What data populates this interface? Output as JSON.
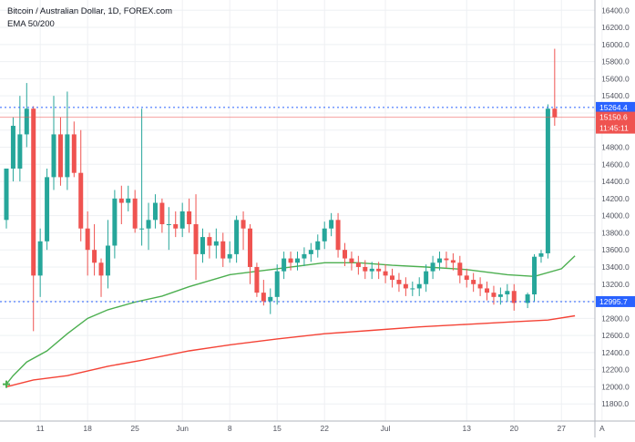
{
  "legend": {
    "title": "Bitcoin / Australian Dollar, 1D, FOREX.com",
    "indicator": "EMA 50/200"
  },
  "colors": {
    "up": "#26a69a",
    "down": "#ef5350",
    "ema50": "#4caf50",
    "ema200": "#f44336",
    "grid": "#eef0f3",
    "level_line": "#2962ff",
    "price_line": "#ef5350",
    "axis_text": "#50535e",
    "level_label_bg": "#2962ff",
    "price_label_bg": "#ef5350"
  },
  "chart_data": {
    "type": "candlestick",
    "title": "Bitcoin / Australian Dollar, 1D, FOREX.com",
    "ylim": [
      11600,
      16520
    ],
    "y_ticks": [
      "11800.0",
      "12000.0",
      "12200.0",
      "12400.0",
      "12600.0",
      "12800.0",
      "13000.0",
      "13200.0",
      "13400.0",
      "13600.0",
      "13800.0",
      "14000.0",
      "14200.0",
      "14400.0",
      "14600.0",
      "14800.0",
      "15000.0",
      "15200.0",
      "15400.0",
      "15600.0",
      "15800.0",
      "16000.0",
      "16200.0",
      "16400.0"
    ],
    "x_ticks": [
      {
        "label": "11",
        "index": 5
      },
      {
        "label": "18",
        "index": 12
      },
      {
        "label": "25",
        "index": 19
      },
      {
        "label": "Jun",
        "index": 26
      },
      {
        "label": "8",
        "index": 33
      },
      {
        "label": "15",
        "index": 40
      },
      {
        "label": "22",
        "index": 47
      },
      {
        "label": "Jul",
        "index": 56
      },
      {
        "label": "13",
        "index": 68
      },
      {
        "label": "20",
        "index": 75
      },
      {
        "label": "27",
        "index": 82
      },
      {
        "label": "A",
        "index": 88
      }
    ],
    "x_count": 89,
    "candles": [
      {
        "o": 13950,
        "h": 14550,
        "l": 13850,
        "c": 14550
      },
      {
        "o": 14550,
        "h": 15150,
        "l": 14400,
        "c": 15050
      },
      {
        "o": 14550,
        "h": 15400,
        "l": 14400,
        "c": 14950
      },
      {
        "o": 14950,
        "h": 15550,
        "l": 14800,
        "c": 15250
      },
      {
        "o": 15250,
        "h": 15280,
        "l": 12650,
        "c": 13300
      },
      {
        "o": 13300,
        "h": 13850,
        "l": 13050,
        "c": 13700
      },
      {
        "o": 13700,
        "h": 14550,
        "l": 13600,
        "c": 14450
      },
      {
        "o": 14450,
        "h": 15400,
        "l": 14300,
        "c": 14950
      },
      {
        "o": 14950,
        "h": 15150,
        "l": 14350,
        "c": 14450
      },
      {
        "o": 14450,
        "h": 15450,
        "l": 14300,
        "c": 14950
      },
      {
        "o": 14950,
        "h": 15100,
        "l": 14450,
        "c": 14500
      },
      {
        "o": 14500,
        "h": 15000,
        "l": 13700,
        "c": 13850
      },
      {
        "o": 13850,
        "h": 14050,
        "l": 13300,
        "c": 13600
      },
      {
        "o": 13600,
        "h": 13900,
        "l": 13300,
        "c": 13450
      },
      {
        "o": 13450,
        "h": 13500,
        "l": 13050,
        "c": 13300
      },
      {
        "o": 13300,
        "h": 13950,
        "l": 13150,
        "c": 13650
      },
      {
        "o": 13650,
        "h": 14300,
        "l": 13500,
        "c": 14200
      },
      {
        "o": 14200,
        "h": 14350,
        "l": 13900,
        "c": 14150
      },
      {
        "o": 14150,
        "h": 14350,
        "l": 14050,
        "c": 14200
      },
      {
        "o": 14200,
        "h": 14300,
        "l": 13800,
        "c": 13850
      },
      {
        "o": 13850,
        "h": 15250,
        "l": 13650,
        "c": 13850
      },
      {
        "o": 13850,
        "h": 14150,
        "l": 13600,
        "c": 13950
      },
      {
        "o": 13950,
        "h": 14250,
        "l": 13850,
        "c": 14150
      },
      {
        "o": 14150,
        "h": 14200,
        "l": 13800,
        "c": 13900
      },
      {
        "o": 13900,
        "h": 14100,
        "l": 13600,
        "c": 13900
      },
      {
        "o": 13900,
        "h": 14050,
        "l": 13750,
        "c": 13850
      },
      {
        "o": 13850,
        "h": 14150,
        "l": 13750,
        "c": 14050
      },
      {
        "o": 14050,
        "h": 14200,
        "l": 13800,
        "c": 13900
      },
      {
        "o": 13900,
        "h": 14250,
        "l": 13250,
        "c": 13550
      },
      {
        "o": 13550,
        "h": 13850,
        "l": 13450,
        "c": 13750
      },
      {
        "o": 13750,
        "h": 13800,
        "l": 13500,
        "c": 13650
      },
      {
        "o": 13650,
        "h": 13850,
        "l": 13500,
        "c": 13700
      },
      {
        "o": 13700,
        "h": 13800,
        "l": 13400,
        "c": 13500
      },
      {
        "o": 13500,
        "h": 13700,
        "l": 13450,
        "c": 13550
      },
      {
        "o": 13550,
        "h": 14000,
        "l": 13450,
        "c": 13950
      },
      {
        "o": 13950,
        "h": 14050,
        "l": 13600,
        "c": 13850
      },
      {
        "o": 13850,
        "h": 13900,
        "l": 13200,
        "c": 13400
      },
      {
        "o": 13400,
        "h": 13450,
        "l": 13050,
        "c": 13100
      },
      {
        "o": 13100,
        "h": 13250,
        "l": 12950,
        "c": 13000
      },
      {
        "o": 13000,
        "h": 13150,
        "l": 12850,
        "c": 13050
      }
    ],
    "ema50": [
      {
        "i": 0,
        "v": 12030
      },
      {
        "i": 1,
        "v": 12130
      },
      {
        "i": 3,
        "v": 12290
      },
      {
        "i": 6,
        "v": 12420
      },
      {
        "i": 9,
        "v": 12620
      },
      {
        "i": 12,
        "v": 12800
      },
      {
        "i": 15,
        "v": 12900
      },
      {
        "i": 19,
        "v": 12990
      },
      {
        "i": 23,
        "v": 13060
      },
      {
        "i": 27,
        "v": 13170
      },
      {
        "i": 33,
        "v": 13310
      },
      {
        "i": 40,
        "v": 13380
      },
      {
        "i": 47,
        "v": 13450
      },
      {
        "i": 52,
        "v": 13450
      },
      {
        "i": 57,
        "v": 13420
      },
      {
        "i": 62,
        "v": 13400
      },
      {
        "i": 68,
        "v": 13370
      },
      {
        "i": 74,
        "v": 13310
      },
      {
        "i": 78,
        "v": 13290
      },
      {
        "i": 82,
        "v": 13380
      },
      {
        "i": 84,
        "v": 13530
      }
    ],
    "ema200": [
      {
        "i": 0,
        "v": 12000
      },
      {
        "i": 4,
        "v": 12080
      },
      {
        "i": 9,
        "v": 12130
      },
      {
        "i": 15,
        "v": 12240
      },
      {
        "i": 20,
        "v": 12310
      },
      {
        "i": 27,
        "v": 12420
      },
      {
        "i": 33,
        "v": 12490
      },
      {
        "i": 40,
        "v": 12560
      },
      {
        "i": 47,
        "v": 12620
      },
      {
        "i": 54,
        "v": 12660
      },
      {
        "i": 61,
        "v": 12700
      },
      {
        "i": 68,
        "v": 12730
      },
      {
        "i": 75,
        "v": 12760
      },
      {
        "i": 80,
        "v": 12780
      },
      {
        "i": 84,
        "v": 12830
      }
    ],
    "levels": [
      {
        "value": 15264.4,
        "label": "15264.4"
      },
      {
        "value": 12995.7,
        "label": "12995.7"
      }
    ],
    "current_price": {
      "value": 15150.6,
      "label": "15150.6",
      "countdown": "11:45:11"
    },
    "last_candles": [
      {
        "i": 77,
        "o": 12980,
        "h": 13100,
        "l": 12920,
        "c": 13080
      },
      {
        "i": 78,
        "o": 13080,
        "h": 13550,
        "l": 13000,
        "c": 13520
      },
      {
        "i": 79,
        "o": 13520,
        "h": 13600,
        "l": 13450,
        "c": 13560
      },
      {
        "i": 80,
        "o": 13560,
        "h": 15300,
        "l": 13500,
        "c": 15250
      },
      {
        "i": 81,
        "o": 15250,
        "h": 15950,
        "l": 15050,
        "c": 15150
      }
    ]
  }
}
